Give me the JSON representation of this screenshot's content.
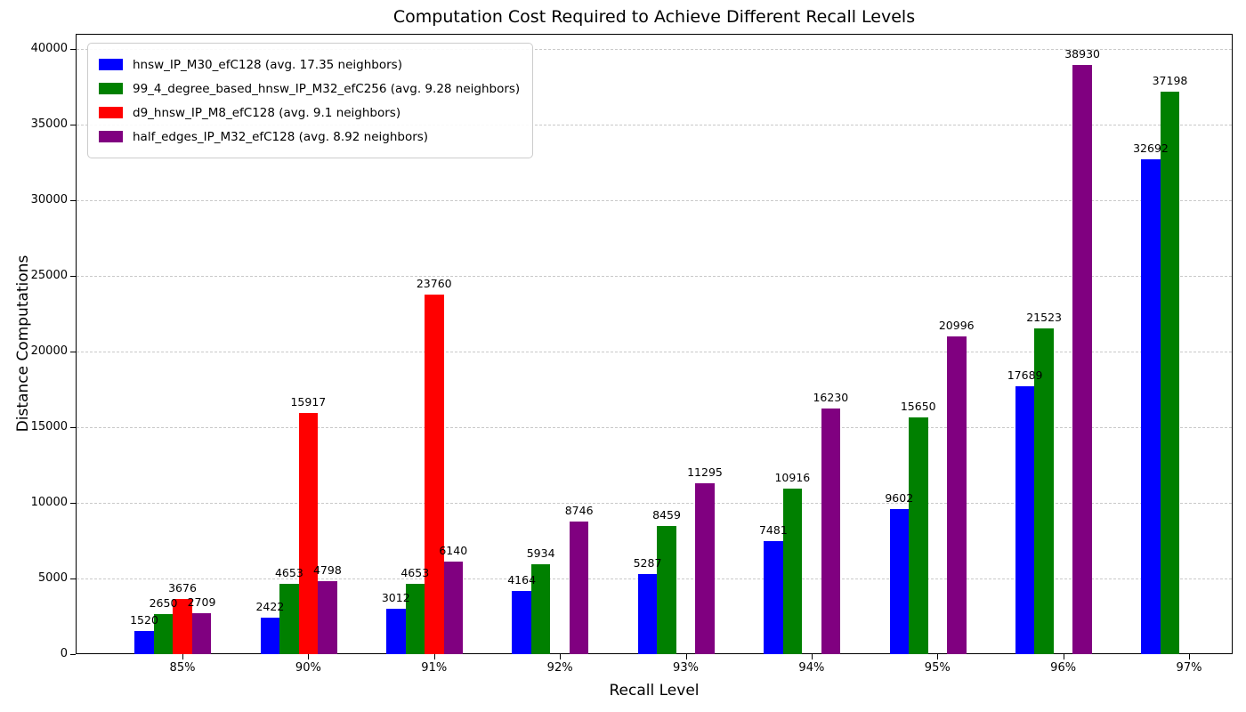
{
  "chart_data": {
    "type": "bar",
    "title": "Computation Cost Required to Achieve Different Recall Levels",
    "xlabel": "Recall Level",
    "ylabel": "Distance Computations",
    "categories": [
      "85%",
      "90%",
      "91%",
      "92%",
      "93%",
      "94%",
      "95%",
      "96%",
      "97%"
    ],
    "series": [
      {
        "name": "hnsw_IP_M30_efC128 (avg. 17.35 neighbors)",
        "color": "#0000ff",
        "values": [
          1520,
          2422,
          3012,
          4164,
          5287,
          7481,
          9602,
          17689,
          32692
        ]
      },
      {
        "name": "99_4_degree_based_hnsw_IP_M32_efC256 (avg. 9.28 neighbors)",
        "color": "#008000",
        "values": [
          2650,
          4653,
          4653,
          5934,
          8459,
          10916,
          15650,
          21523,
          37198
        ]
      },
      {
        "name": "d9_hnsw_IP_M8_efC128 (avg. 9.1 neighbors)",
        "color": "#ff0000",
        "values": [
          3676,
          15917,
          23760,
          null,
          null,
          null,
          null,
          null,
          null
        ]
      },
      {
        "name": "half_edges_IP_M32_efC128 (avg. 8.92 neighbors)",
        "color": "#800080",
        "values": [
          2709,
          4798,
          6140,
          8746,
          11295,
          16230,
          20996,
          38930,
          null
        ]
      }
    ],
    "yticks": [
      0,
      5000,
      10000,
      15000,
      20000,
      25000,
      30000,
      35000,
      40000
    ],
    "ylim": [
      0,
      40941
    ],
    "grid": "dashed-horizontal",
    "legend_position": "upper-left",
    "bar_value_labels": true
  }
}
